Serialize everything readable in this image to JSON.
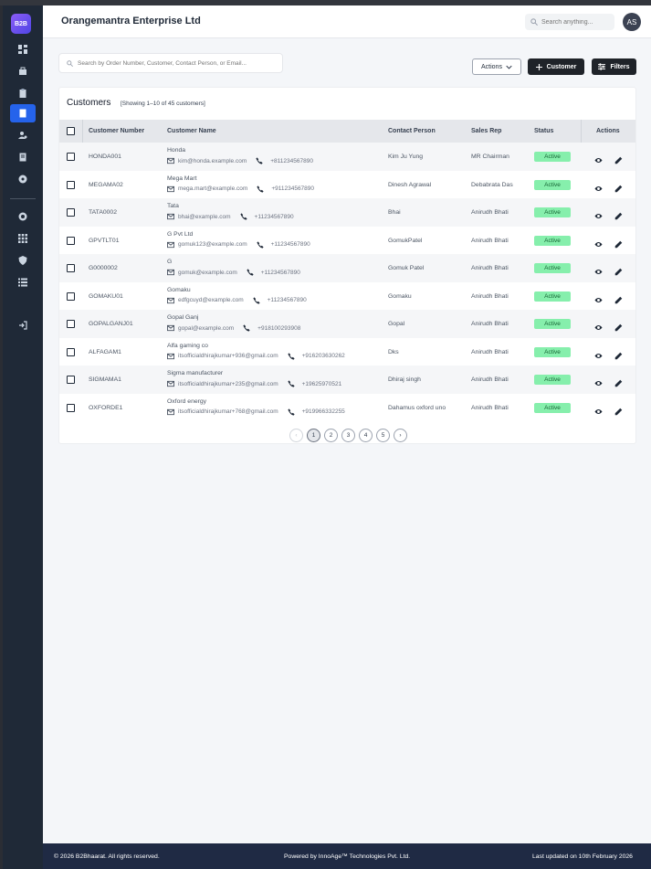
{
  "app": {
    "logo_text": "B2B",
    "company": "Orangemantra Enterprise Ltd",
    "header_search_placeholder": "Search anything...",
    "avatar_initials": "AS"
  },
  "toolbar": {
    "search_placeholder": "Search by Order Number, Customer, Contact Person, or Email...",
    "actions_label": "Actions",
    "customer_label": "Customer",
    "filters_label": "Filters"
  },
  "card": {
    "title": "Customers",
    "subtitle": "[Showing 1–10 of 45 customers]"
  },
  "columns": [
    "Customer Number",
    "Customer Name",
    "Contact Person",
    "Sales Rep",
    "Status",
    "Actions"
  ],
  "rows": [
    {
      "number": "HONDA001",
      "name": "Honda",
      "email": "kim@honda.example.com",
      "phone": "+811234567890",
      "contact": "Kim Ju Yung",
      "rep": "MR Chairman",
      "status": "Active"
    },
    {
      "number": "MEGAMA02",
      "name": "Mega Mart",
      "email": "mega.mart@example.com",
      "phone": "+911234567890",
      "contact": "Dinesh Agrawal",
      "rep": "Debabrata Das",
      "status": "Active"
    },
    {
      "number": "TATA0002",
      "name": "Tata",
      "email": "bhai@example.com",
      "phone": "+11234567890",
      "contact": "Bhai",
      "rep": "Anirudh Bhati",
      "status": "Active"
    },
    {
      "number": "GPVTLT01",
      "name": "G Pvt Ltd",
      "email": "gomuk123@example.com",
      "phone": "+11234567890",
      "contact": "GomukPatel",
      "rep": "Anirudh Bhati",
      "status": "Active"
    },
    {
      "number": "G0000002",
      "name": "G",
      "email": "gomuk@example.com",
      "phone": "+11234567890",
      "contact": "Gomuk Patel",
      "rep": "Anirudh Bhati",
      "status": "Active"
    },
    {
      "number": "GOMAKU01",
      "name": "Gomaku",
      "email": "edfgcuyd@example.com",
      "phone": "+11234567890",
      "contact": "Gomaku",
      "rep": "Anirudh Bhati",
      "status": "Active"
    },
    {
      "number": "GOPALGANJ01",
      "name": "Gopal Ganj",
      "email": "gopal@example.com",
      "phone": "+918100293908",
      "contact": "Gopal",
      "rep": "Anirudh Bhati",
      "status": "Active"
    },
    {
      "number": "ALFAGAM1",
      "name": "Alfa gaming co",
      "email": "itsofficialdhirajkumar+936@gmail.com",
      "phone": "+916203630262",
      "contact": "Dks",
      "rep": "Anirudh Bhati",
      "status": "Active"
    },
    {
      "number": "SIGMAMA1",
      "name": "Sigma manufacturer",
      "email": "itsofficialdhirajkumar+235@gmail.com",
      "phone": "+19625970521",
      "contact": "Dhiraj singh",
      "rep": "Anirudh Bhati",
      "status": "Active"
    },
    {
      "number": "OXFORDE1",
      "name": "Oxford energy",
      "email": "itsofficialdhirajkumar+768@gmail.com",
      "phone": "+919966332255",
      "contact": "Dahamus oxford uno",
      "rep": "Anirudh Bhati",
      "status": "Active"
    }
  ],
  "pagination": {
    "prev": "‹",
    "pages": [
      "1",
      "2",
      "3",
      "4",
      "5"
    ],
    "next": "›",
    "current": "1"
  },
  "footer": {
    "copyright": "© 2026 B2Bhaarat. All rights reserved.",
    "powered": "Powered by InnoAge™ Technologies Pvt. Ltd.",
    "updated": "Last updated on 10th February 2026"
  }
}
